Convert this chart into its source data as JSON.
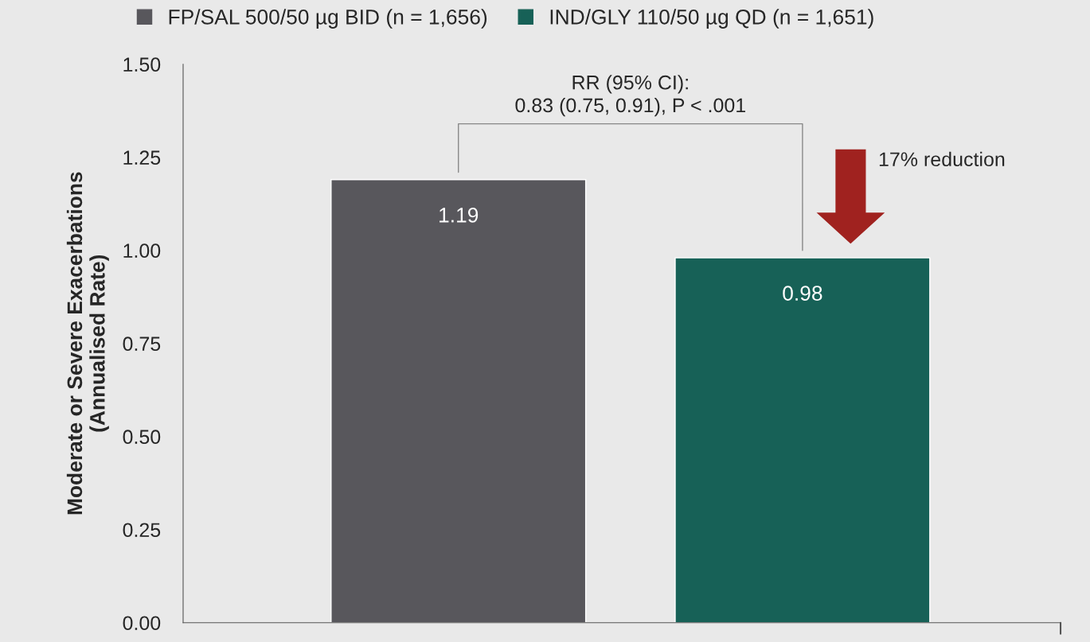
{
  "chart_data": {
    "type": "bar",
    "ylabel": "Moderate or Severe Exacerbations\n(Annualised Rate)",
    "categories": [
      null,
      null
    ],
    "series": [
      {
        "name": "FP/SAL 500/50 µg BID (n = 1,656)",
        "color": "#58575c",
        "values": [
          1.19,
          null
        ]
      },
      {
        "name": "IND/GLY 110/50 µg QD (n = 1,651)",
        "color": "#176157",
        "values": [
          null,
          0.98
        ]
      }
    ],
    "ylim": [
      0,
      1.5
    ],
    "yticks": [
      {
        "value": 0,
        "label": "0.00"
      },
      {
        "value": 0.25,
        "label": "0.25"
      },
      {
        "value": 0.5,
        "label": "0.50"
      },
      {
        "value": 0.75,
        "label": "0.75"
      },
      {
        "value": 1.0,
        "label": "1.00"
      },
      {
        "value": 1.25,
        "label": "1.25"
      },
      {
        "value": 1.5,
        "label": "1.50"
      }
    ],
    "data_labels": true,
    "legend": "top",
    "grid": false,
    "annotations": [
      "RR (95% CI):\n0.83 (0.75, 0.91), P < .001",
      "17% reduction"
    ]
  }
}
